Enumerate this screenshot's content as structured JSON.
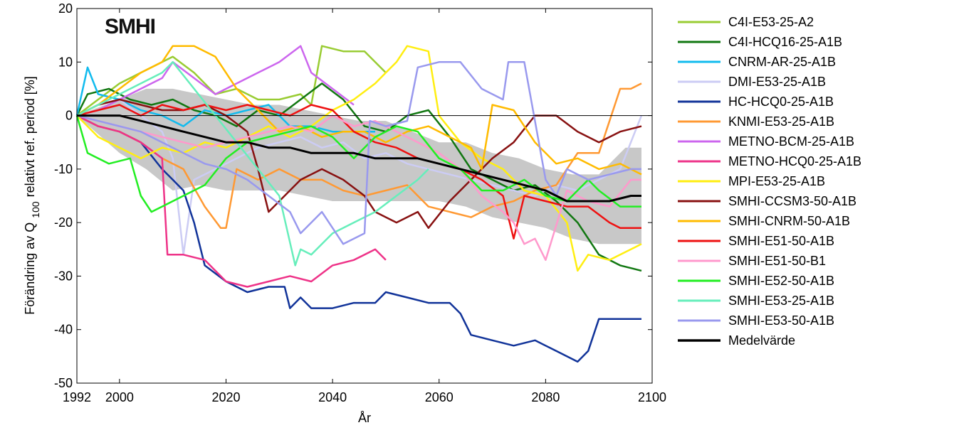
{
  "logo": "SMHI",
  "chart_data": {
    "type": "line",
    "title": "",
    "xlabel": "År",
    "ylabel_main": "Förändring av Q",
    "ylabel_sub": "100",
    "ylabel_rest": "relativt ref. period [%]",
    "xlim": [
      1992,
      2100
    ],
    "ylim": [
      -50,
      20
    ],
    "xticks": [
      1992,
      2000,
      2020,
      2040,
      2060,
      2080,
      2100
    ],
    "yticks": [
      20,
      10,
      0,
      -10,
      -20,
      -30,
      -40,
      -50
    ],
    "grid": false,
    "legend_position": "right",
    "band": {
      "x": [
        1992,
        2000,
        2005,
        2010,
        2015,
        2020,
        2025,
        2030,
        2035,
        2040,
        2045,
        2050,
        2055,
        2060,
        2065,
        2070,
        2075,
        2080,
        2085,
        2090,
        2095,
        2098
      ],
      "upper": [
        0,
        3,
        5,
        5,
        4,
        3,
        2,
        2,
        1,
        0,
        -1,
        -1,
        -3,
        -5,
        -5,
        -7,
        -8,
        -10,
        -11,
        -11,
        -6,
        -6
      ],
      "lower": [
        0,
        -7,
        -10,
        -14,
        -13,
        -14,
        -14,
        -14,
        -15,
        -16,
        -16,
        -16,
        -16,
        -16,
        -17,
        -19,
        -20,
        -21,
        -23,
        -24,
        -24,
        -24
      ]
    },
    "series": [
      {
        "name": "C4I-E53-25-A2",
        "color": "#99cc33",
        "x": [
          1992,
          1996,
          2000,
          2004,
          2008,
          2010,
          2014,
          2018,
          2022,
          2026,
          2030,
          2034,
          2036,
          2038,
          2042,
          2046,
          2050
        ],
        "y": [
          0,
          3,
          6,
          8,
          10,
          11,
          8,
          4,
          5,
          3,
          3,
          4,
          2,
          13,
          12,
          12,
          8
        ]
      },
      {
        "name": "C4I-HCQ16-25-A1B",
        "color": "#117711",
        "x": [
          1992,
          1994,
          1998,
          2002,
          2006,
          2010,
          2014,
          2018,
          2022,
          2026,
          2030,
          2034,
          2038,
          2042,
          2046,
          2050,
          2054,
          2058,
          2062,
          2066,
          2070,
          2074,
          2078,
          2082,
          2086,
          2090,
          2094,
          2098
        ],
        "y": [
          0,
          4,
          5,
          3,
          2,
          3,
          1,
          0,
          -2,
          1,
          0,
          3,
          6,
          3,
          -2,
          -3,
          0,
          1,
          -4,
          -10,
          -12,
          -14,
          -13,
          -16,
          -20,
          -26,
          -28,
          -29
        ]
      },
      {
        "name": "CNRM-AR-25-A1B",
        "color": "#11bbee",
        "x": [
          1992,
          1994,
          1996,
          2000,
          2004,
          2008,
          2012,
          2016,
          2020,
          2024,
          2028,
          2032,
          2036,
          2040,
          2044,
          2048
        ],
        "y": [
          0,
          9,
          4,
          3,
          1,
          0,
          -2,
          1,
          0,
          1,
          2,
          -2,
          -2,
          -3,
          -3,
          -3
        ]
      },
      {
        "name": "DMI-E53-25-A1B",
        "color": "#ccccf4",
        "x": [
          1992,
          1996,
          2000,
          2004,
          2008,
          2010,
          2012,
          2014,
          2018,
          2022,
          2026,
          2030,
          2034,
          2038,
          2042,
          2046,
          2050,
          2054,
          2058,
          2062,
          2066,
          2070,
          2074,
          2078,
          2082,
          2086,
          2090,
          2094,
          2098
        ],
        "y": [
          0,
          2,
          3,
          0,
          -3,
          -8,
          -26,
          -12,
          -10,
          -8,
          -6,
          -5,
          -4,
          -6,
          -5,
          -8,
          -7,
          -9,
          -10,
          -11,
          -12,
          -13,
          -14,
          -15,
          -13,
          -14,
          -12,
          -10,
          0
        ]
      },
      {
        "name": "HC-HCQ0-25-A1B",
        "color": "#113399",
        "x": [
          1992,
          1996,
          2000,
          2004,
          2008,
          2010,
          2012,
          2014,
          2016,
          2020,
          2024,
          2028,
          2031,
          2032,
          2034,
          2036,
          2040,
          2044,
          2048,
          2050,
          2054,
          2058,
          2062,
          2064,
          2066,
          2070,
          2074,
          2078,
          2082,
          2086,
          2088,
          2090,
          2094,
          2098
        ],
        "y": [
          0,
          -2,
          -3,
          -5,
          -10,
          -12,
          -14,
          -20,
          -28,
          -31,
          -33,
          -32,
          -32,
          -36,
          -34,
          -36,
          -36,
          -35,
          -35,
          -33,
          -34,
          -35,
          -35,
          -37,
          -41,
          -42,
          -43,
          -42,
          -44,
          -46,
          -44,
          -38,
          -38,
          -38
        ]
      },
      {
        "name": "KNMI-E53-25-A1B",
        "color": "#ff9933",
        "x": [
          1992,
          1996,
          2000,
          2004,
          2008,
          2012,
          2016,
          2019,
          2020,
          2022,
          2026,
          2030,
          2034,
          2038,
          2042,
          2046,
          2050,
          2054,
          2058,
          2062,
          2066,
          2070,
          2074,
          2078,
          2082,
          2086,
          2090,
          2094,
          2096,
          2098
        ],
        "y": [
          0,
          -2,
          -3,
          -5,
          -8,
          -10,
          -17,
          -21,
          -21,
          -10,
          -12,
          -10,
          -12,
          -12,
          -14,
          -15,
          -14,
          -13,
          -17,
          -18,
          -19,
          -17,
          -16,
          -14,
          -13,
          -7,
          -7,
          5,
          5,
          6
        ]
      },
      {
        "name": "METNO-BCM-25-A1B",
        "color": "#cc66ee",
        "x": [
          1992,
          1996,
          2000,
          2004,
          2008,
          2010,
          2014,
          2018,
          2022,
          2026,
          2030,
          2034,
          2036,
          2040,
          2044
        ],
        "y": [
          0,
          1,
          3,
          5,
          7,
          10,
          7,
          4,
          6,
          8,
          10,
          13,
          8,
          5,
          2
        ]
      },
      {
        "name": "METNO-HCQ0-25-A1B",
        "color": "#ee3388",
        "x": [
          1992,
          1996,
          2000,
          2004,
          2008,
          2009,
          2012,
          2016,
          2020,
          2024,
          2028,
          2032,
          2036,
          2040,
          2044,
          2048,
          2050
        ],
        "y": [
          0,
          -2,
          -3,
          -5,
          -8,
          -26,
          -26,
          -27,
          -31,
          -32,
          -31,
          -30,
          -31,
          -28,
          -27,
          -25,
          -27
        ]
      },
      {
        "name": "MPI-E53-25-A1B",
        "color": "#ffee11",
        "x": [
          1992,
          1996,
          2000,
          2004,
          2008,
          2012,
          2016,
          2020,
          2024,
          2028,
          2032,
          2036,
          2040,
          2044,
          2048,
          2050,
          2052,
          2054,
          2058,
          2060,
          2064,
          2068,
          2072,
          2076,
          2080,
          2084,
          2086,
          2088,
          2092,
          2096,
          2098
        ],
        "y": [
          0,
          -4,
          -6,
          -8,
          -6,
          -7,
          -5,
          -6,
          -4,
          -2,
          -4,
          -2,
          1,
          3,
          6,
          8,
          10,
          13,
          12,
          0,
          -5,
          -8,
          -10,
          -14,
          -15,
          -20,
          -29,
          -26,
          -27,
          -25,
          -24
        ]
      },
      {
        "name": "SMHI-CCSM3-50-A1B",
        "color": "#881111",
        "x": [
          1992,
          1996,
          2000,
          2004,
          2008,
          2012,
          2016,
          2020,
          2024,
          2026,
          2028,
          2030,
          2034,
          2038,
          2042,
          2046,
          2048,
          2052,
          2056,
          2058,
          2062,
          2066,
          2070,
          2074,
          2078,
          2082,
          2086,
          2090,
          2094,
          2098
        ],
        "y": [
          0,
          2,
          3,
          2,
          1,
          1,
          2,
          0,
          -3,
          -10,
          -18,
          -16,
          -12,
          -10,
          -12,
          -15,
          -18,
          -20,
          -18,
          -21,
          -16,
          -12,
          -8,
          -5,
          0,
          0,
          -3,
          -5,
          -3,
          -2
        ]
      },
      {
        "name": "SMHI-CNRM-50-A1B",
        "color": "#ffbb00",
        "x": [
          1992,
          1996,
          2000,
          2004,
          2008,
          2010,
          2014,
          2018,
          2022,
          2026,
          2030,
          2034,
          2038,
          2042,
          2046,
          2050,
          2054,
          2058,
          2062,
          2066,
          2068,
          2070,
          2074,
          2078,
          2082,
          2086,
          2090,
          2094,
          2098
        ],
        "y": [
          0,
          2,
          5,
          8,
          10,
          13,
          13,
          11,
          5,
          1,
          -3,
          -2,
          -4,
          -3,
          -3,
          -5,
          -3,
          -2,
          -4,
          -6,
          -10,
          2,
          1,
          -5,
          -9,
          -8,
          -10,
          -9,
          -11
        ]
      },
      {
        "name": "SMHI-E51-50-A1B",
        "color": "#ee1111",
        "x": [
          1992,
          1996,
          2000,
          2004,
          2008,
          2012,
          2016,
          2020,
          2024,
          2028,
          2032,
          2036,
          2040,
          2044,
          2048,
          2052,
          2056,
          2060,
          2064,
          2068,
          2072,
          2074,
          2076,
          2080,
          2084,
          2088,
          2092,
          2094,
          2098
        ],
        "y": [
          0,
          1,
          2,
          0,
          2,
          1,
          2,
          1,
          2,
          1,
          0,
          2,
          1,
          -3,
          -5,
          -6,
          -8,
          -9,
          -10,
          -12,
          -15,
          -23,
          -15,
          -16,
          -17,
          -17,
          -20,
          -21,
          -21
        ]
      },
      {
        "name": "SMHI-E51-50-B1",
        "color": "#ff99cc",
        "x": [
          1992,
          1996,
          2000,
          2004,
          2008,
          2012,
          2016,
          2020,
          2024,
          2028,
          2032,
          2036,
          2040,
          2044,
          2048,
          2052,
          2056,
          2060,
          2064,
          2068,
          2072,
          2074,
          2076,
          2078,
          2080,
          2084,
          2088,
          2092,
          2096,
          2098
        ],
        "y": [
          0,
          -1,
          -2,
          -3,
          -4,
          -5,
          -6,
          -5,
          -4,
          -3,
          -2,
          -3,
          0,
          -2,
          -1,
          -3,
          -5,
          -7,
          -10,
          -15,
          -18,
          -20,
          -24,
          -23,
          -27,
          -14,
          -16,
          -17,
          -12,
          -12
        ]
      },
      {
        "name": "SMHI-E52-50-A1B",
        "color": "#22ee22",
        "x": [
          1992,
          1994,
          1998,
          2002,
          2004,
          2006,
          2008,
          2012,
          2016,
          2020,
          2024,
          2028,
          2032,
          2036,
          2040,
          2044,
          2048,
          2052,
          2056,
          2060,
          2064,
          2068,
          2072,
          2076,
          2080,
          2084,
          2088,
          2090,
          2094,
          2098
        ],
        "y": [
          0,
          -7,
          -9,
          -8,
          -15,
          -18,
          -17,
          -15,
          -13,
          -8,
          -5,
          -4,
          -3,
          -2,
          -4,
          -8,
          -4,
          -2,
          -3,
          -8,
          -10,
          -14,
          -14,
          -12,
          -15,
          -16,
          -12,
          -14,
          -17,
          -17
        ]
      },
      {
        "name": "SMHI-E53-25-A1B",
        "color": "#66eebb",
        "x": [
          1992,
          1996,
          2000,
          2004,
          2008,
          2010,
          2014,
          2018,
          2022,
          2026,
          2030,
          2033,
          2034,
          2036,
          2040,
          2044,
          2048,
          2052,
          2056,
          2058
        ],
        "y": [
          0,
          2,
          4,
          6,
          8,
          10,
          5,
          0,
          -5,
          -10,
          -15,
          -28,
          -25,
          -26,
          -22,
          -20,
          -18,
          -15,
          -12,
          -10
        ]
      },
      {
        "name": "SMHI-E53-50-A1B",
        "color": "#9999ee",
        "x": [
          1992,
          1996,
          2000,
          2004,
          2008,
          2012,
          2016,
          2020,
          2024,
          2028,
          2032,
          2034,
          2038,
          2042,
          2046,
          2047,
          2050,
          2054,
          2056,
          2060,
          2064,
          2068,
          2072,
          2073,
          2074,
          2076,
          2080,
          2082,
          2084,
          2088,
          2092,
          2096,
          2098
        ],
        "y": [
          0,
          -1,
          -2,
          -3,
          -5,
          -7,
          -9,
          -10,
          -12,
          -15,
          -18,
          -22,
          -18,
          -24,
          -22,
          -1,
          -2,
          -1,
          9,
          10,
          10,
          5,
          3,
          10,
          10,
          10,
          -12,
          -15,
          -10,
          -12,
          -11,
          -10,
          -10
        ]
      },
      {
        "name": "Medelvärde",
        "color": "#000000",
        "x": [
          1992,
          1996,
          2000,
          2004,
          2008,
          2012,
          2016,
          2020,
          2024,
          2028,
          2032,
          2036,
          2040,
          2044,
          2048,
          2052,
          2056,
          2060,
          2064,
          2068,
          2072,
          2076,
          2080,
          2084,
          2088,
          2092,
          2096,
          2098
        ],
        "y": [
          0,
          0,
          0,
          -1,
          -2,
          -3,
          -4,
          -5,
          -5,
          -6,
          -6,
          -7,
          -7,
          -7,
          -8,
          -8,
          -8,
          -9,
          -10,
          -11,
          -12,
          -13,
          -14,
          -16,
          -16,
          -16,
          -15,
          -15
        ]
      }
    ]
  }
}
